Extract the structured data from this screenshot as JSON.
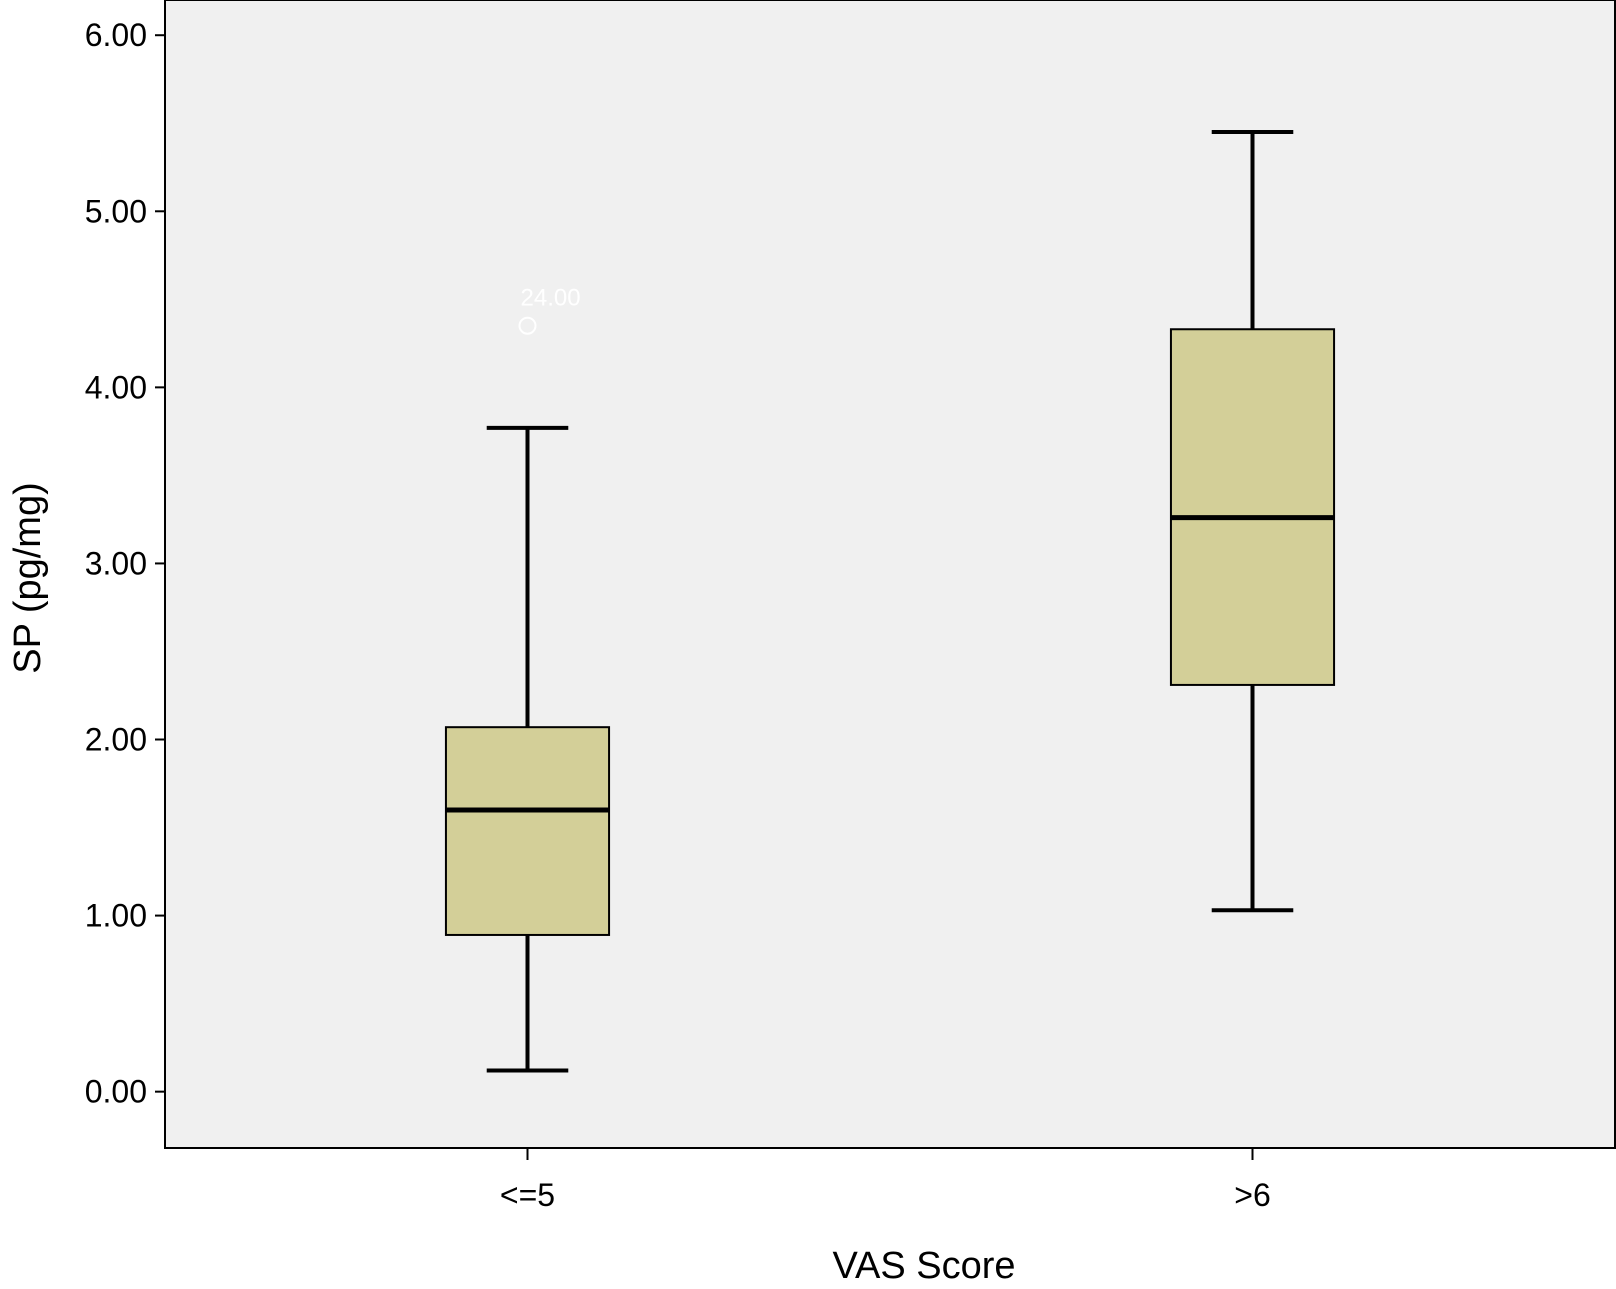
{
  "colors": {
    "plot_background": "#f0f0f0",
    "box_fill": "#d3cf98",
    "line": "#000000",
    "outlier": "#ffffff"
  },
  "chart_data": {
    "type": "boxplot",
    "title": "",
    "xlabel": "VAS Score",
    "ylabel": "SP (pg/mg)",
    "ylim": [
      -0.32,
      6.2
    ],
    "yticks": [
      0.0,
      1.0,
      2.0,
      3.0,
      4.0,
      5.0,
      6.0
    ],
    "ytick_labels": [
      "0.00",
      "1.00",
      "2.00",
      "3.00",
      "4.00",
      "5.00",
      "6.00"
    ],
    "grid": false,
    "categories": [
      "<=5",
      ">6"
    ],
    "boxes": [
      {
        "category": "<=5",
        "whisker_low": 0.12,
        "q1": 0.89,
        "median": 1.6,
        "q3": 2.07,
        "whisker_high": 3.77,
        "outliers": [
          {
            "value": 4.35,
            "label": "24.00"
          }
        ]
      },
      {
        "category": ">6",
        "whisker_low": 1.03,
        "q1": 2.31,
        "median": 3.26,
        "q3": 4.33,
        "whisker_high": 5.45,
        "outliers": []
      }
    ]
  }
}
